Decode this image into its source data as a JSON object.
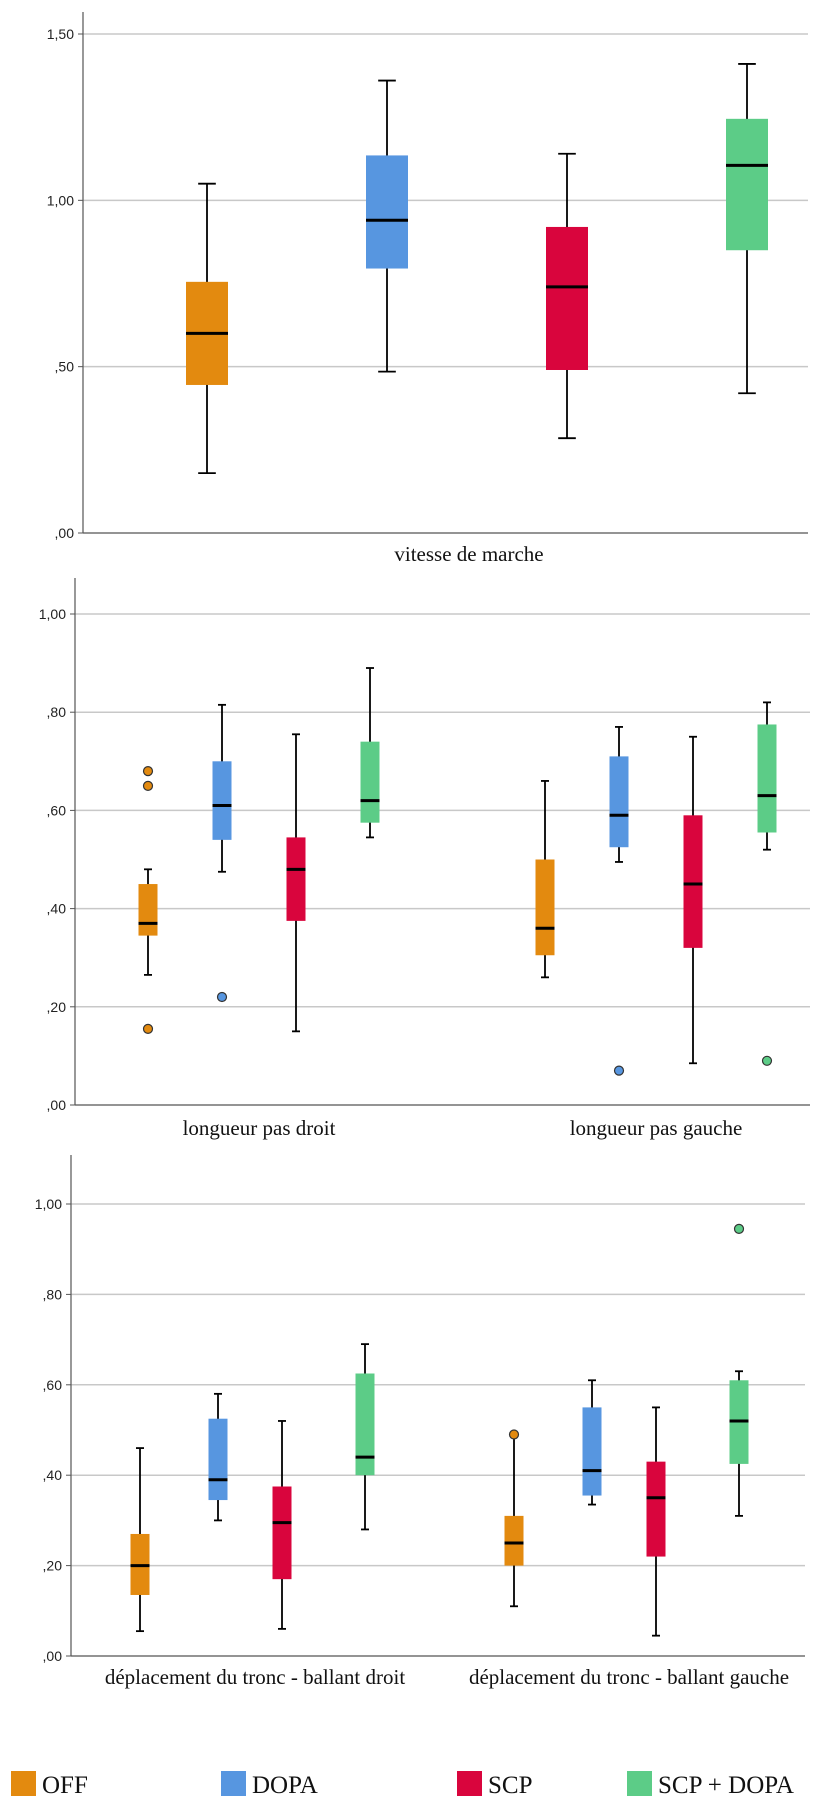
{
  "chart_data": [
    {
      "type": "box",
      "ylim": [
        0,
        1.5
      ],
      "yticks": [
        0,
        0.5,
        1.0,
        1.5
      ],
      "ytick_labels": [
        ",00",
        ",50",
        "1,00",
        "1,50"
      ],
      "grid": true,
      "categories": [
        "vitesse de marche"
      ],
      "groups": [
        {
          "category": "vitesse de marche",
          "boxes": [
            {
              "series": "OFF",
              "min": 0.18,
              "q1": 0.445,
              "median": 0.6,
              "q3": 0.755,
              "max": 1.05,
              "outliers": []
            },
            {
              "series": "DOPA",
              "min": 0.485,
              "q1": 0.795,
              "median": 0.94,
              "q3": 1.135,
              "max": 1.36,
              "outliers": []
            },
            {
              "series": "SCP",
              "min": 0.285,
              "q1": 0.49,
              "median": 0.74,
              "q3": 0.92,
              "max": 1.14,
              "outliers": []
            },
            {
              "series": "SCP + DOPA",
              "min": 0.42,
              "q1": 0.85,
              "median": 1.105,
              "q3": 1.245,
              "max": 1.41,
              "outliers": []
            }
          ]
        }
      ]
    },
    {
      "type": "box",
      "ylim": [
        0,
        1.0
      ],
      "yticks": [
        0,
        0.2,
        0.4,
        0.6,
        0.8,
        1.0
      ],
      "ytick_labels": [
        ",00",
        ",20",
        ",40",
        ",60",
        ",80",
        "1,00"
      ],
      "grid": true,
      "categories": [
        "longueur pas droit",
        "longueur pas gauche"
      ],
      "groups": [
        {
          "category": "longueur pas droit",
          "boxes": [
            {
              "series": "OFF",
              "min": 0.265,
              "q1": 0.345,
              "median": 0.37,
              "q3": 0.45,
              "max": 0.48,
              "outliers": [
                0.68,
                0.65,
                0.155
              ]
            },
            {
              "series": "DOPA",
              "min": 0.475,
              "q1": 0.54,
              "median": 0.61,
              "q3": 0.7,
              "max": 0.815,
              "outliers": [
                0.22
              ]
            },
            {
              "series": "SCP",
              "min": 0.15,
              "q1": 0.375,
              "median": 0.48,
              "q3": 0.545,
              "max": 0.755,
              "outliers": []
            },
            {
              "series": "SCP + DOPA",
              "min": 0.545,
              "q1": 0.575,
              "median": 0.62,
              "q3": 0.74,
              "max": 0.89,
              "outliers": []
            }
          ]
        },
        {
          "category": "longueur pas gauche",
          "boxes": [
            {
              "series": "OFF",
              "min": 0.26,
              "q1": 0.305,
              "median": 0.36,
              "q3": 0.5,
              "max": 0.66,
              "outliers": []
            },
            {
              "series": "DOPA",
              "min": 0.495,
              "q1": 0.525,
              "median": 0.59,
              "q3": 0.71,
              "max": 0.77,
              "outliers": [
                0.07
              ]
            },
            {
              "series": "SCP",
              "min": 0.085,
              "q1": 0.32,
              "median": 0.45,
              "q3": 0.59,
              "max": 0.75,
              "outliers": []
            },
            {
              "series": "SCP + DOPA",
              "min": 0.52,
              "q1": 0.555,
              "median": 0.63,
              "q3": 0.775,
              "max": 0.82,
              "outliers": [
                0.09
              ]
            }
          ]
        }
      ]
    },
    {
      "type": "box",
      "ylim": [
        0,
        1.0
      ],
      "yticks": [
        0,
        0.2,
        0.4,
        0.6,
        0.8,
        1.0
      ],
      "ytick_labels": [
        ",00",
        ",20",
        ",40",
        ",60",
        ",80",
        "1,00"
      ],
      "grid": true,
      "categories": [
        "déplacement du tronc - ballant droit",
        "déplacement du tronc - ballant gauche"
      ],
      "groups": [
        {
          "category": "déplacement du tronc - ballant droit",
          "boxes": [
            {
              "series": "OFF",
              "min": 0.055,
              "q1": 0.135,
              "median": 0.2,
              "q3": 0.27,
              "max": 0.46,
              "outliers": []
            },
            {
              "series": "DOPA",
              "min": 0.3,
              "q1": 0.345,
              "median": 0.39,
              "q3": 0.525,
              "max": 0.58,
              "outliers": []
            },
            {
              "series": "SCP",
              "min": 0.06,
              "q1": 0.17,
              "median": 0.295,
              "q3": 0.375,
              "max": 0.52,
              "outliers": []
            },
            {
              "series": "SCP + DOPA",
              "min": 0.28,
              "q1": 0.4,
              "median": 0.44,
              "q3": 0.625,
              "max": 0.69,
              "outliers": []
            }
          ]
        },
        {
          "category": "déplacement du tronc - ballant gauche",
          "boxes": [
            {
              "series": "OFF",
              "min": 0.11,
              "q1": 0.2,
              "median": 0.25,
              "q3": 0.31,
              "max": 0.49,
              "outliers": [
                0.49
              ]
            },
            {
              "series": "DOPA",
              "min": 0.335,
              "q1": 0.355,
              "median": 0.41,
              "q3": 0.55,
              "max": 0.61,
              "outliers": []
            },
            {
              "series": "SCP",
              "min": 0.045,
              "q1": 0.22,
              "median": 0.35,
              "q3": 0.43,
              "max": 0.55,
              "outliers": []
            },
            {
              "series": "SCP + DOPA",
              "min": 0.31,
              "q1": 0.425,
              "median": 0.52,
              "q3": 0.61,
              "max": 0.63,
              "outliers": [
                0.945
              ]
            }
          ]
        }
      ]
    }
  ],
  "legend": [
    {
      "label": "OFF",
      "color": "#e38a0f"
    },
    {
      "label": "DOPA",
      "color": "#5796e0"
    },
    {
      "label": "SCP",
      "color": "#d9053d"
    },
    {
      "label": "SCP + DOPA",
      "color": "#5ccc87"
    }
  ],
  "colors": {
    "OFF": "#e38a0f",
    "DOPA": "#5796e0",
    "SCP": "#d9053d",
    "SCP + DOPA": "#5ccc87",
    "grid": "#c8c8c8",
    "axis": "#555555"
  }
}
